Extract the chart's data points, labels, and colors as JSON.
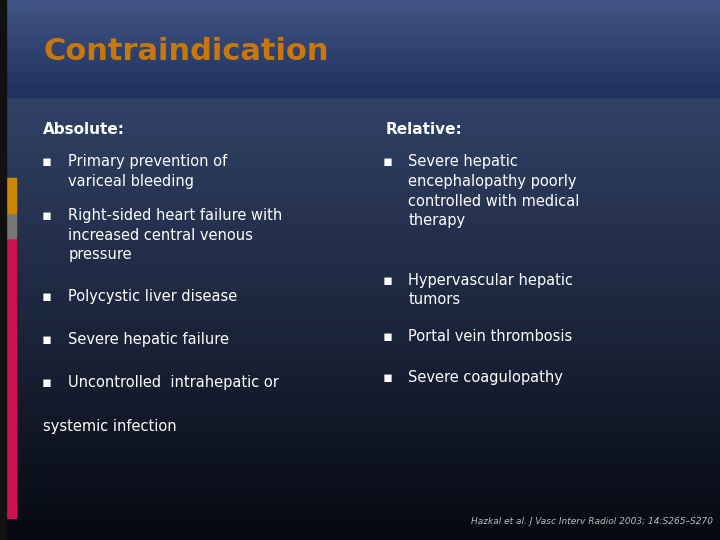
{
  "title": "Contraindication",
  "title_color": "#C8780A",
  "title_fontsize": 22,
  "bg_color_top": "#3a4f7a",
  "bg_color_bottom": "#060810",
  "absolute_header": "Absolute:",
  "relative_header": "Relative:",
  "header_color": "#ffffff",
  "header_fontsize": 11,
  "bullet_color": "#ffffff",
  "bullet_fontsize": 10.5,
  "absolute_bullets": [
    "Primary prevention of\nvariceal bleeding",
    "Right-sided heart failure with\nincreased central venous\npressure",
    "Polycystic liver disease",
    "Severe hepatic failure",
    "Uncontrolled  intrahepatic or"
  ],
  "absolute_last_line": "systemic infection",
  "relative_bullets": [
    "Severe hepatic\nencephalopathy poorly\ncontrolled with medical\ntherapy",
    "Hypervascular hepatic\ntumors",
    "Portal vein thrombosis",
    "Severe coagulopathy"
  ],
  "citation": "Hazkal et al. J Vasc Interv Radiol 2003; 14:S265–S270",
  "citation_color": "#bbbbbb",
  "citation_fontsize": 6.5,
  "sidebar_pink": "#cc1155",
  "sidebar_gray": "#777777",
  "sidebar_gold": "#cc8800",
  "sidebar_black": "#111111"
}
